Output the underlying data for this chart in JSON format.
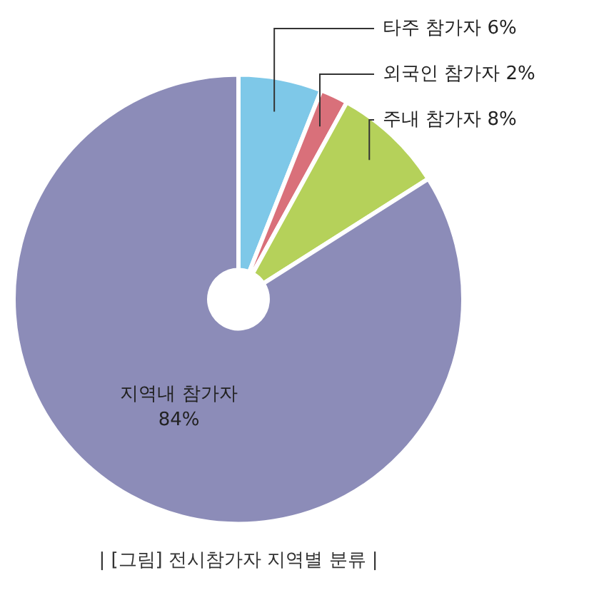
{
  "chart_data": {
    "type": "donut",
    "title": "| [그림] 전시참가자 지역별 분류 |",
    "categories": [
      "타주 참가자",
      "외국인 참가자",
      "주내 참가자",
      "지역내 참가자"
    ],
    "values": [
      6,
      2,
      8,
      84
    ],
    "value_labels": [
      "6%",
      "2%",
      "8%",
      "84%"
    ],
    "colors": [
      "#7ec8e8",
      "#d9707a",
      "#b5d15a",
      "#8c8cb8"
    ],
    "legend": false
  }
}
